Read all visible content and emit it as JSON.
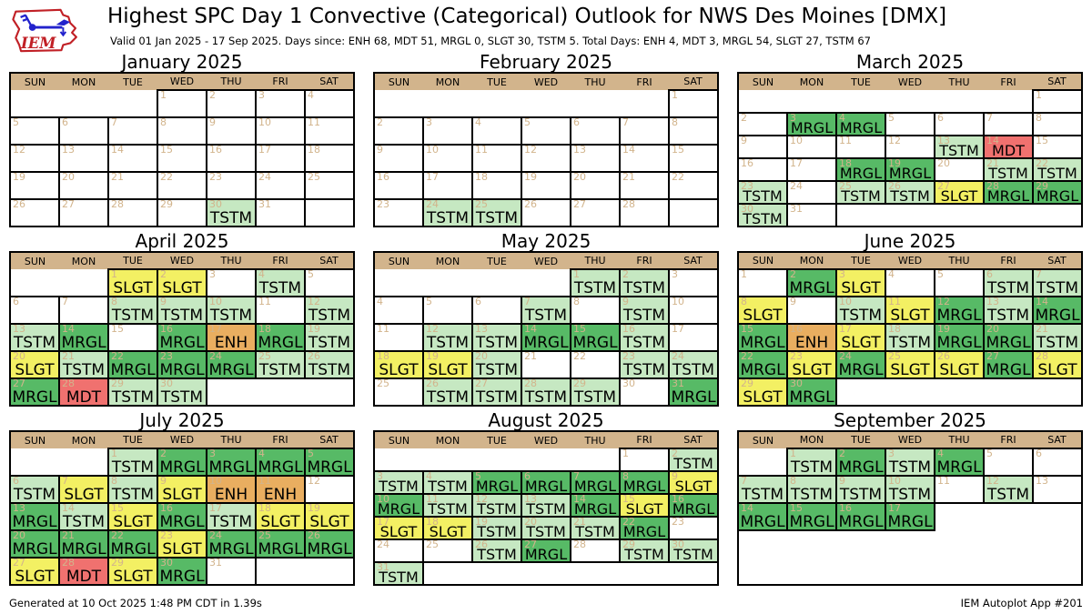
{
  "header": {
    "title": "Highest SPC Day 1 Convective (Categorical) Outlook for NWS Des Moines [DMX]",
    "subtitle": "Valid 01 Jan 2025 - 17 Sep 2025. Days since: ENH 68, MDT 51, MRGL 0, SLGT 30, TSTM 5. Total Days: ENH 4, MDT 3, MRGL 54, SLGT 27, TSTM 67",
    "logo_text": "IEM"
  },
  "footer": {
    "generated": "Generated at 10 Oct 2025 1:48 PM CDT in 1.39s",
    "app": "IEM Autoplot App #201"
  },
  "chart_data": {
    "type": "calendar_heatmap",
    "title": "Highest SPC Day 1 Convective (Categorical) Outlook for NWS Des Moines [DMX]",
    "valid_range": "01 Jan 2025 - 17 Sep 2025",
    "days_since": {
      "ENH": 68,
      "MDT": 51,
      "MRGL": 0,
      "SLGT": 30,
      "TSTM": 5
    },
    "total_days": {
      "ENH": 4,
      "MDT": 3,
      "MRGL": 54,
      "SLGT": 27,
      "TSTM": 67
    },
    "weekdays": [
      "SUN",
      "MON",
      "TUE",
      "WED",
      "THU",
      "FRI",
      "SAT"
    ],
    "colors": {
      "TSTM": "#c6e8c2",
      "MRGL": "#57ba66",
      "SLGT": "#f3f063",
      "ENH": "#e9ae60",
      "MDT": "#f0716f",
      "header_bg": "#d2b48c",
      "day_number": "#d2b48c"
    },
    "months": [
      {
        "title": "January 2025",
        "first_dow": 3,
        "num_days": 31,
        "rows": 5,
        "outlooks": {
          "30": "TSTM"
        }
      },
      {
        "title": "February 2025",
        "first_dow": 6,
        "num_days": 28,
        "rows": 5,
        "outlooks": {
          "24": "TSTM",
          "25": "TSTM"
        }
      },
      {
        "title": "March 2025",
        "first_dow": 6,
        "num_days": 31,
        "rows": 6,
        "outlooks": {
          "3": "MRGL",
          "4": "MRGL",
          "13": "TSTM",
          "14": "MDT",
          "18": "MRGL",
          "19": "MRGL",
          "21": "TSTM",
          "22": "TSTM",
          "23": "TSTM",
          "25": "TSTM",
          "26": "TSTM",
          "27": "SLGT",
          "28": "MRGL",
          "29": "MRGL",
          "30": "TSTM"
        }
      },
      {
        "title": "April 2025",
        "first_dow": 2,
        "num_days": 30,
        "rows": 5,
        "outlooks": {
          "1": "SLGT",
          "2": "SLGT",
          "4": "TSTM",
          "8": "TSTM",
          "9": "TSTM",
          "10": "TSTM",
          "12": "TSTM",
          "13": "TSTM",
          "14": "MRGL",
          "16": "MRGL",
          "17": "ENH",
          "18": "MRGL",
          "19": "TSTM",
          "20": "SLGT",
          "21": "TSTM",
          "22": "MRGL",
          "23": "MRGL",
          "24": "MRGL",
          "25": "TSTM",
          "26": "TSTM",
          "27": "MRGL",
          "28": "MDT",
          "29": "TSTM",
          "30": "TSTM"
        }
      },
      {
        "title": "May 2025",
        "first_dow": 4,
        "num_days": 31,
        "rows": 5,
        "outlooks": {
          "1": "TSTM",
          "2": "TSTM",
          "7": "TSTM",
          "9": "TSTM",
          "12": "TSTM",
          "13": "TSTM",
          "14": "MRGL",
          "15": "MRGL",
          "16": "TSTM",
          "18": "SLGT",
          "19": "SLGT",
          "20": "TSTM",
          "23": "TSTM",
          "24": "TSTM",
          "26": "TSTM",
          "27": "TSTM",
          "28": "TSTM",
          "29": "TSTM",
          "31": "MRGL"
        }
      },
      {
        "title": "June 2025",
        "first_dow": 0,
        "num_days": 30,
        "rows": 5,
        "outlooks": {
          "2": "MRGL",
          "3": "SLGT",
          "6": "TSTM",
          "7": "TSTM",
          "8": "SLGT",
          "10": "TSTM",
          "11": "SLGT",
          "12": "MRGL",
          "13": "TSTM",
          "14": "MRGL",
          "15": "MRGL",
          "16": "ENH",
          "17": "SLGT",
          "18": "TSTM",
          "19": "MRGL",
          "20": "MRGL",
          "21": "TSTM",
          "22": "MRGL",
          "23": "SLGT",
          "24": "MRGL",
          "25": "SLGT",
          "26": "SLGT",
          "27": "MRGL",
          "28": "SLGT",
          "29": "SLGT",
          "30": "MRGL"
        }
      },
      {
        "title": "July 2025",
        "first_dow": 2,
        "num_days": 31,
        "rows": 5,
        "outlooks": {
          "1": "TSTM",
          "2": "MRGL",
          "3": "MRGL",
          "4": "MRGL",
          "5": "MRGL",
          "6": "TSTM",
          "7": "SLGT",
          "8": "TSTM",
          "9": "SLGT",
          "10": "ENH",
          "11": "ENH",
          "13": "MRGL",
          "14": "TSTM",
          "15": "SLGT",
          "16": "MRGL",
          "17": "TSTM",
          "18": "SLGT",
          "19": "SLGT",
          "20": "MRGL",
          "21": "MRGL",
          "22": "MRGL",
          "23": "SLGT",
          "24": "MRGL",
          "25": "MRGL",
          "26": "MRGL",
          "27": "SLGT",
          "28": "MDT",
          "29": "SLGT",
          "30": "MRGL"
        }
      },
      {
        "title": "August 2025",
        "first_dow": 5,
        "num_days": 31,
        "rows": 6,
        "outlooks": {
          "2": "TSTM",
          "3": "TSTM",
          "4": "TSTM",
          "5": "MRGL",
          "6": "MRGL",
          "7": "MRGL",
          "8": "MRGL",
          "9": "SLGT",
          "10": "MRGL",
          "11": "TSTM",
          "12": "TSTM",
          "13": "TSTM",
          "14": "MRGL",
          "15": "SLGT",
          "16": "MRGL",
          "17": "SLGT",
          "18": "SLGT",
          "19": "TSTM",
          "20": "TSTM",
          "21": "TSTM",
          "22": "MRGL",
          "26": "TSTM",
          "27": "MRGL",
          "29": "TSTM",
          "30": "TSTM",
          "31": "TSTM"
        }
      },
      {
        "title": "September 2025",
        "first_dow": 1,
        "num_days": 17,
        "rows": 5,
        "outlooks": {
          "1": "TSTM",
          "2": "MRGL",
          "3": "TSTM",
          "4": "MRGL",
          "7": "TSTM",
          "8": "TSTM",
          "9": "TSTM",
          "10": "TSTM",
          "12": "TSTM",
          "14": "MRGL",
          "15": "MRGL",
          "16": "MRGL",
          "17": "MRGL"
        }
      }
    ]
  }
}
